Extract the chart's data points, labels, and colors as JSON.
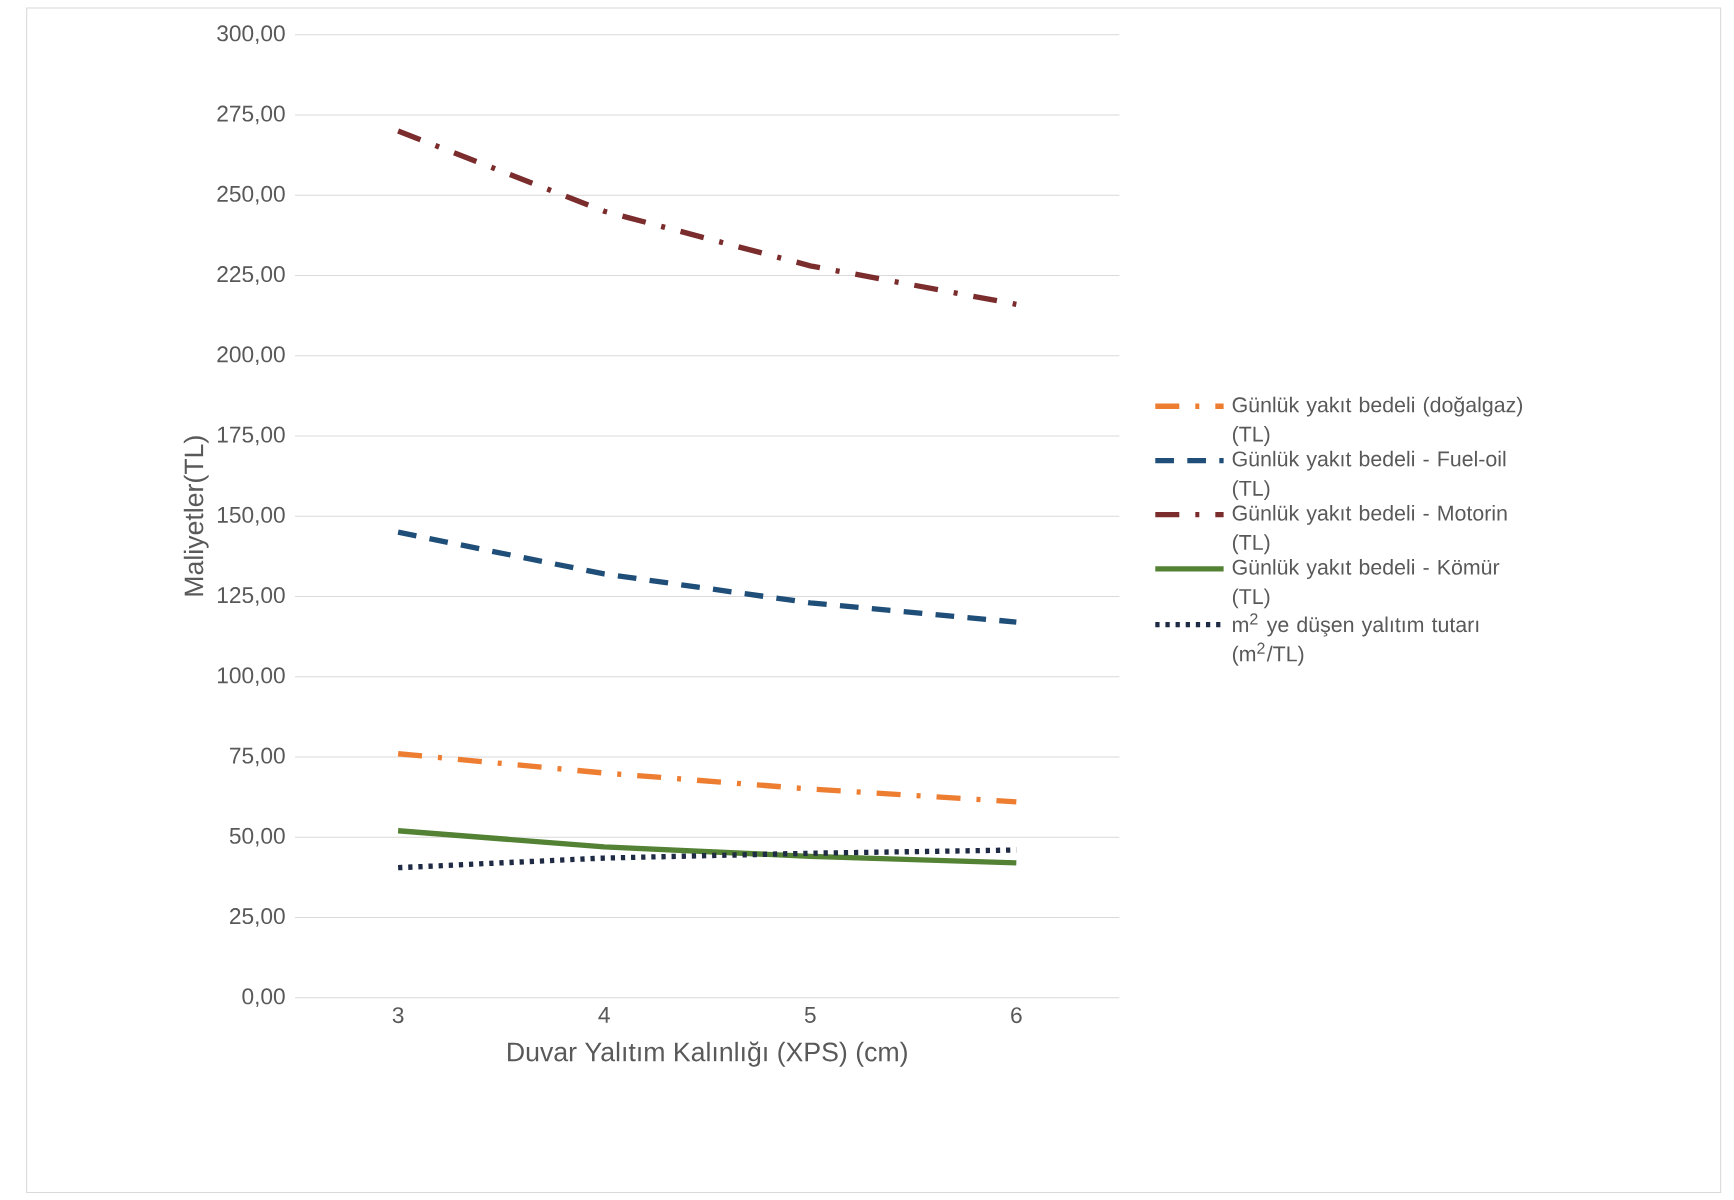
{
  "chart_data": {
    "type": "line",
    "xlabel": "Duvar Yalıtım Kalınlığı (XPS) (cm)",
    "ylabel": "Maliyetler(TL)",
    "categories": [
      "3",
      "4",
      "5",
      "6"
    ],
    "ylim": [
      0,
      300
    ],
    "yticks": [
      {
        "value": 0,
        "label": "0,00"
      },
      {
        "value": 25,
        "label": "25,00"
      },
      {
        "value": 50,
        "label": "50,00"
      },
      {
        "value": 75,
        "label": "75,00"
      },
      {
        "value": 100,
        "label": "100,00"
      },
      {
        "value": 125,
        "label": "125,00"
      },
      {
        "value": 150,
        "label": "150,00"
      },
      {
        "value": 175,
        "label": "175,00"
      },
      {
        "value": 200,
        "label": "200,00"
      },
      {
        "value": 225,
        "label": "225,00"
      },
      {
        "value": 250,
        "label": "250,00"
      },
      {
        "value": 275,
        "label": "275,00"
      },
      {
        "value": 300,
        "label": "300,00"
      }
    ],
    "grid": "y",
    "legend": "right",
    "marker": "none",
    "series": [
      {
        "name": "Günlük yakıt bedeli (doğalgaz) (TL)",
        "color": "#ed7d31",
        "line_style": "dashdot",
        "values": [
          76,
          70,
          65,
          61
        ]
      },
      {
        "name": "Günlük yakıt bedeli - Fuel-oil (TL)",
        "color": "#1f4e79",
        "line_style": "dashed",
        "values": [
          145,
          132,
          123,
          117
        ]
      },
      {
        "name": "Günlük yakıt bedeli - Motorin (TL)",
        "color": "#7b2c2c",
        "line_style": "dashdot",
        "values": [
          270,
          245,
          228,
          216
        ]
      },
      {
        "name": "Günlük yakıt bedeli - Kömür (TL)",
        "color": "#548235",
        "line_style": "solid",
        "values": [
          52,
          47,
          44,
          42
        ]
      },
      {
        "name": "m$^{2}$ ye düşen yalıtım tutarı (m$^{2}$/TL)",
        "color": "#1f2a44",
        "line_style": "dotted",
        "values": [
          40.5,
          43.5,
          45,
          46
        ]
      }
    ]
  }
}
